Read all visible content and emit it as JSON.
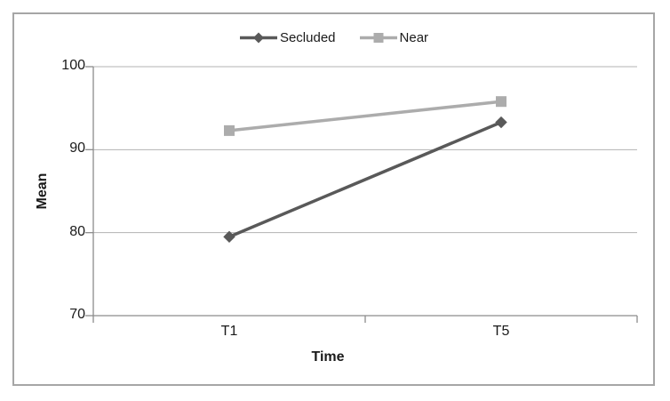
{
  "chart_data": {
    "type": "line",
    "title": "",
    "xlabel": "Time",
    "ylabel": "Mean",
    "categories": [
      "T1",
      "T5"
    ],
    "ylim": [
      70,
      100
    ],
    "y_ticks": [
      70,
      80,
      90,
      100
    ],
    "grid": "horizontal",
    "legend_position": "top-center",
    "series": [
      {
        "name": "Secluded",
        "marker": "diamond",
        "color": "#595959",
        "values": [
          79.5,
          93.3
        ]
      },
      {
        "name": "Near",
        "marker": "square",
        "color": "#acacac",
        "values": [
          92.3,
          95.8
        ]
      }
    ]
  },
  "colors": {
    "gridline": "#b3b3b3",
    "axis": "#8c8c8c",
    "frame_border": "#a6a6a6",
    "text": "#1a1a1a",
    "background": "#ffffff"
  }
}
